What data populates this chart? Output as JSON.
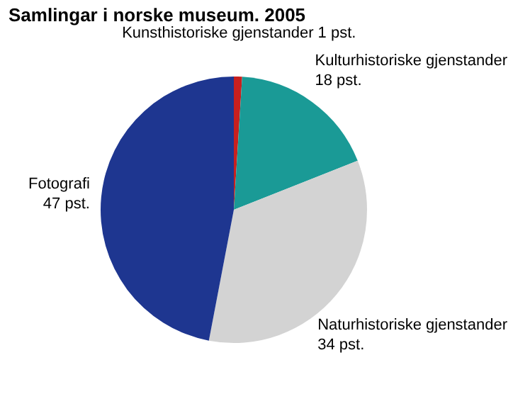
{
  "chart_data": {
    "type": "pie",
    "title": "Samlingar i norske museum. 2005",
    "categories": [
      "Kunsthistoriske gjenstander",
      "Kulturhistoriske gjenstander",
      "Naturhistoriske gjenstander",
      "Fotografi"
    ],
    "values": [
      1,
      18,
      34,
      47
    ],
    "value_labels": [
      "1 pst.",
      "18 pst.",
      "34 pst.",
      "47 pst."
    ],
    "colors": [
      "#c8201e",
      "#1a9a96",
      "#d3d3d3",
      "#1e3690"
    ],
    "legend": false
  }
}
